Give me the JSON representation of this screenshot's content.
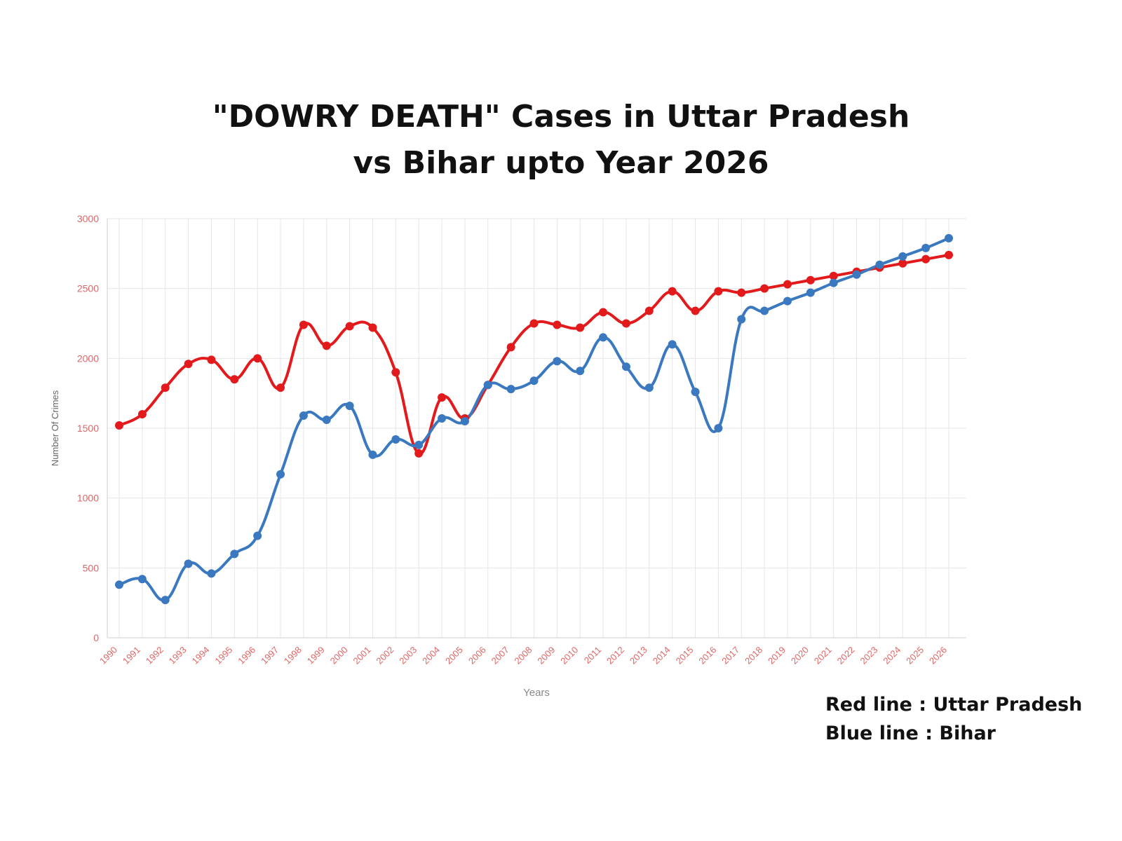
{
  "title": {
    "line1": "\"DOWRY DEATH\" Cases in Uttar Pradesh",
    "line2": "vs Bihar upto Year 2026"
  },
  "legend_note": {
    "red": "Red line : Uttar Pradesh",
    "blue": "Blue line : Bihar"
  },
  "colors": {
    "red_series": "#e31a1c",
    "blue_series": "#3a78bf",
    "grid": "#e6e6e6",
    "tick_label": "#e06666"
  },
  "chart_data": {
    "type": "line",
    "xlabel": "Years",
    "ylabel": "Number Of Crimes",
    "ylim": [
      0,
      3000
    ],
    "yticks": [
      0,
      500,
      1000,
      1500,
      2000,
      2500,
      3000
    ],
    "grid": true,
    "categories": [
      "1990",
      "1991",
      "1992",
      "1993",
      "1994",
      "1995",
      "1996",
      "1997",
      "1998",
      "1999",
      "2000",
      "2001",
      "2002",
      "2003",
      "2004",
      "2005",
      "2006",
      "2007",
      "2008",
      "2009",
      "2010",
      "2011",
      "2012",
      "2013",
      "2014",
      "2015",
      "2016",
      "2017",
      "2018",
      "2019",
      "2020",
      "2021",
      "2022",
      "2023",
      "2024",
      "2025",
      "2026"
    ],
    "series": [
      {
        "name": "Uttar Pradesh",
        "color": "#e31a1c",
        "values": [
          1520,
          1600,
          1790,
          1960,
          1990,
          1850,
          2000,
          1790,
          2240,
          2090,
          2230,
          2220,
          1900,
          1320,
          1720,
          1570,
          1810,
          2080,
          2250,
          2240,
          2220,
          2330,
          2250,
          2340,
          2480,
          2340,
          2480,
          2470,
          2500,
          2530,
          2560,
          2590,
          2620,
          2650,
          2680,
          2710,
          2740
        ]
      },
      {
        "name": "Bihar",
        "color": "#3a78bf",
        "values": [
          380,
          420,
          270,
          530,
          460,
          600,
          730,
          1170,
          1590,
          1560,
          1660,
          1310,
          1420,
          1380,
          1570,
          1550,
          1810,
          1780,
          1840,
          1980,
          1910,
          2150,
          1940,
          1790,
          2100,
          1760,
          1500,
          2280,
          2340,
          2410,
          2470,
          2540,
          2600,
          2670,
          2730,
          2790,
          2860
        ]
      }
    ]
  }
}
